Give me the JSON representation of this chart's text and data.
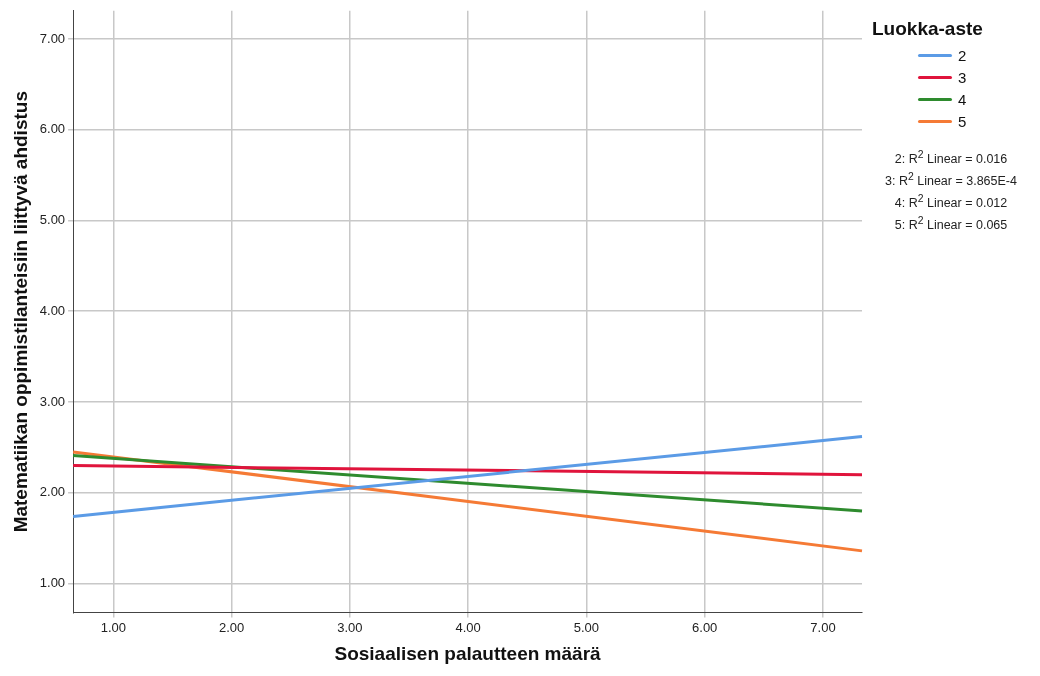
{
  "chart_data": {
    "type": "line",
    "xlabel": "Sosiaalisen palautteen määrä",
    "ylabel": "Matematiikan oppimistilanteisiin liittyvä ahdistus",
    "legend_title": "Luokka-aste",
    "legend": "top right",
    "grid": true,
    "marker": "none",
    "line_style": "solid",
    "x": [
      0.66,
      7.33
    ],
    "xlim": [
      0.66,
      7.33
    ],
    "ylim": [
      0.68,
      7.31
    ],
    "xticks": [
      {
        "value": 1,
        "label": "1.00"
      },
      {
        "value": 2,
        "label": "2.00"
      },
      {
        "value": 3,
        "label": "3.00"
      },
      {
        "value": 4,
        "label": "4.00"
      },
      {
        "value": 5,
        "label": "5.00"
      },
      {
        "value": 6,
        "label": "6.00"
      },
      {
        "value": 7,
        "label": "7.00"
      }
    ],
    "yticks": [
      {
        "value": 1,
        "label": "1.00"
      },
      {
        "value": 2,
        "label": "2.00"
      },
      {
        "value": 3,
        "label": "3.00"
      },
      {
        "value": 4,
        "label": "4.00"
      },
      {
        "value": 5,
        "label": "5.00"
      },
      {
        "value": 6,
        "label": "6.00"
      },
      {
        "value": 7,
        "label": "7.00"
      }
    ],
    "series": [
      {
        "name": "2",
        "color": "#5b9be6",
        "values": [
          1.74,
          2.62
        ]
      },
      {
        "name": "3",
        "color": "#e0143c",
        "values": [
          2.3,
          2.2
        ]
      },
      {
        "name": "4",
        "color": "#2e8b2e",
        "values": [
          2.41,
          1.8
        ]
      },
      {
        "name": "5",
        "color": "#f57a35",
        "values": [
          2.45,
          1.36
        ]
      }
    ],
    "annotations": [
      "2: R$^{2}$ Linear = 0.016",
      "3: R$^{2}$ Linear = 3.865E-4",
      "4: R$^{2}$ Linear = 0.012",
      "5: R$^{2}$ Linear = 0.065"
    ]
  }
}
